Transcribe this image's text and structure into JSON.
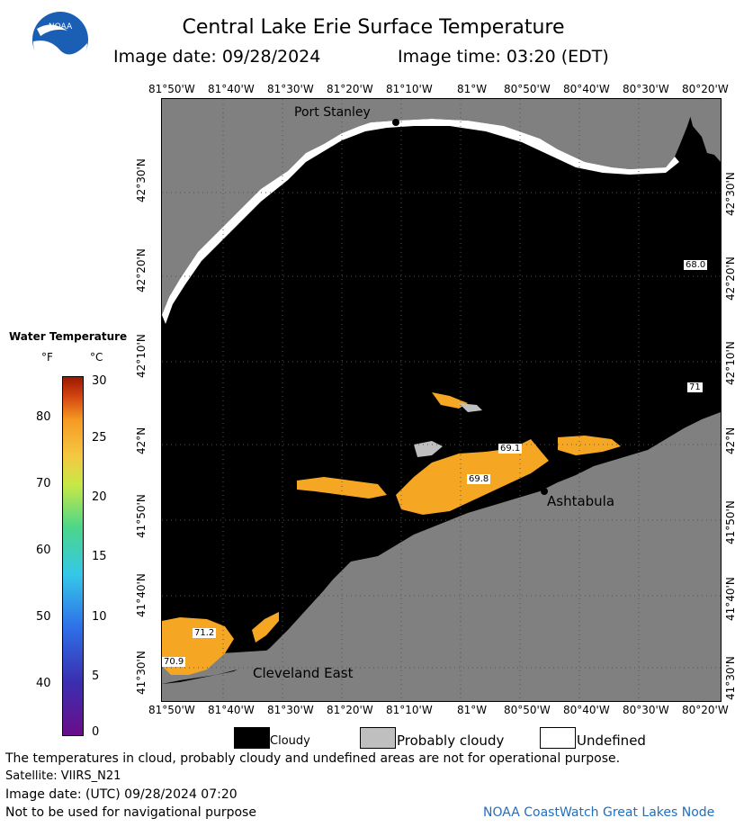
{
  "header": {
    "logo_text": "NOAA",
    "title": "Central Lake Erie Surface Temperature",
    "image_date_label": "Image date: 09/28/2024",
    "image_time_label": "Image time: 03:20 (EDT)"
  },
  "map": {
    "top_lon_labels": [
      "81°50'W",
      "81°40'W",
      "81°30'W",
      "81°20'W",
      "81°10'W",
      "81°W",
      "80°50'W",
      "80°40'W",
      "80°30'W",
      "80°20'W"
    ],
    "bottom_lon_labels": [
      "81°50'W",
      "81°40'W",
      "81°30'W",
      "81°20'W",
      "81°10'W",
      "81°W",
      "80°50'W",
      "80°40'W",
      "80°30'W",
      "80°20'W"
    ],
    "lat_labels": [
      "42°30'N",
      "42°20'N",
      "42°10'N",
      "42°N",
      "41°50'N",
      "41°40'N",
      "41°30'N"
    ],
    "place_labels": {
      "port_stanley": "Port Stanley",
      "ashtabula": "Ashtabula",
      "cleveland_east": "Cleveland East"
    },
    "temp_labels": {
      "t1": "68.0",
      "t2": "71",
      "t3": "69.1",
      "t4": "69.8",
      "t5": "71.2",
      "t6": "70.9"
    },
    "colors": {
      "land": "#808080",
      "cloud": "#000000",
      "probably_cloudy": "#bfbfbf",
      "undefined": "#ffffff",
      "warm_water": "#f5a623"
    }
  },
  "colorbar": {
    "title": "Water Temperature",
    "unit_f": "°F",
    "unit_c": "°C",
    "f_ticks": [
      "80",
      "70",
      "60",
      "50",
      "40"
    ],
    "c_ticks": [
      "30",
      "25",
      "20",
      "15",
      "10",
      "5",
      "0"
    ]
  },
  "legend": {
    "cloudy": "Cloudy",
    "probably_cloudy": "Probably cloudy",
    "undefined": "Undefined"
  },
  "footer": {
    "disclaimer": "The temperatures in cloud, probably cloudy and undefined areas are not for operational purpose.",
    "satellite": "Satellite: VIIRS_N21",
    "utc_date": "Image date: (UTC) 09/28/2024  07:20",
    "nav_warning": "Not to be used for navigational purpose",
    "credit": "NOAA CoastWatch Great Lakes Node"
  }
}
